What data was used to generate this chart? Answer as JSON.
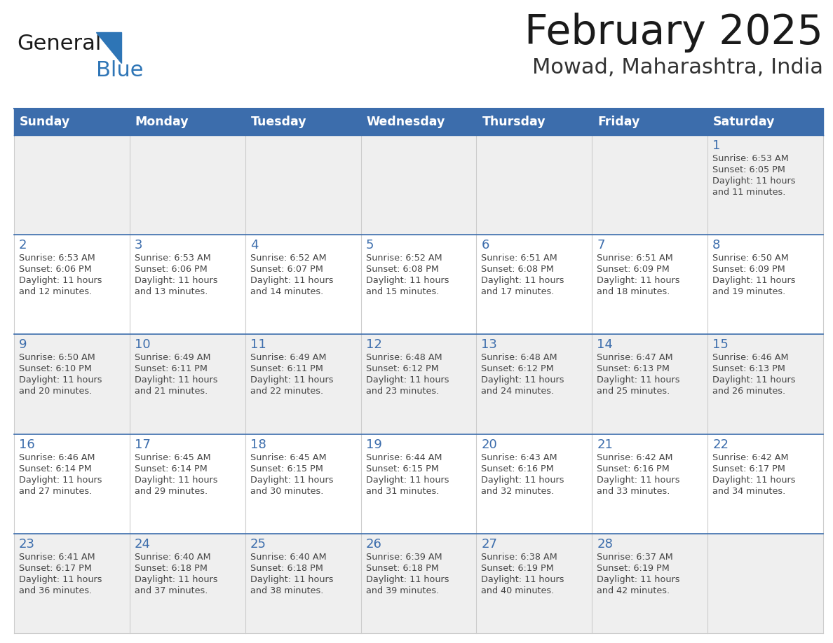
{
  "title": "February 2025",
  "subtitle": "Mowad, Maharashtra, India",
  "days_of_week": [
    "Sunday",
    "Monday",
    "Tuesday",
    "Wednesday",
    "Thursday",
    "Friday",
    "Saturday"
  ],
  "header_bg": "#3C6DAC",
  "header_text_color": "#FFFFFF",
  "cell_bg_even": "#EFEFEF",
  "cell_bg_odd": "#FFFFFF",
  "cell_text_color": "#444444",
  "day_number_color": "#3C6DAC",
  "row_separator_color": "#3C6DAC",
  "grid_color": "#CCCCCC",
  "title_color": "#1a1a1a",
  "subtitle_color": "#333333",
  "logo_general_color": "#1a1a1a",
  "logo_blue_color": "#2E75B6",
  "calendar_data": [
    {
      "day": 1,
      "col": 6,
      "row": 0,
      "sunrise": "6:53 AM",
      "sunset": "6:05 PM",
      "daylight_line1": "Daylight: 11 hours",
      "daylight_line2": "and 11 minutes."
    },
    {
      "day": 2,
      "col": 0,
      "row": 1,
      "sunrise": "6:53 AM",
      "sunset": "6:06 PM",
      "daylight_line1": "Daylight: 11 hours",
      "daylight_line2": "and 12 minutes."
    },
    {
      "day": 3,
      "col": 1,
      "row": 1,
      "sunrise": "6:53 AM",
      "sunset": "6:06 PM",
      "daylight_line1": "Daylight: 11 hours",
      "daylight_line2": "and 13 minutes."
    },
    {
      "day": 4,
      "col": 2,
      "row": 1,
      "sunrise": "6:52 AM",
      "sunset": "6:07 PM",
      "daylight_line1": "Daylight: 11 hours",
      "daylight_line2": "and 14 minutes."
    },
    {
      "day": 5,
      "col": 3,
      "row": 1,
      "sunrise": "6:52 AM",
      "sunset": "6:08 PM",
      "daylight_line1": "Daylight: 11 hours",
      "daylight_line2": "and 15 minutes."
    },
    {
      "day": 6,
      "col": 4,
      "row": 1,
      "sunrise": "6:51 AM",
      "sunset": "6:08 PM",
      "daylight_line1": "Daylight: 11 hours",
      "daylight_line2": "and 17 minutes."
    },
    {
      "day": 7,
      "col": 5,
      "row": 1,
      "sunrise": "6:51 AM",
      "sunset": "6:09 PM",
      "daylight_line1": "Daylight: 11 hours",
      "daylight_line2": "and 18 minutes."
    },
    {
      "day": 8,
      "col": 6,
      "row": 1,
      "sunrise": "6:50 AM",
      "sunset": "6:09 PM",
      "daylight_line1": "Daylight: 11 hours",
      "daylight_line2": "and 19 minutes."
    },
    {
      "day": 9,
      "col": 0,
      "row": 2,
      "sunrise": "6:50 AM",
      "sunset": "6:10 PM",
      "daylight_line1": "Daylight: 11 hours",
      "daylight_line2": "and 20 minutes."
    },
    {
      "day": 10,
      "col": 1,
      "row": 2,
      "sunrise": "6:49 AM",
      "sunset": "6:11 PM",
      "daylight_line1": "Daylight: 11 hours",
      "daylight_line2": "and 21 minutes."
    },
    {
      "day": 11,
      "col": 2,
      "row": 2,
      "sunrise": "6:49 AM",
      "sunset": "6:11 PM",
      "daylight_line1": "Daylight: 11 hours",
      "daylight_line2": "and 22 minutes."
    },
    {
      "day": 12,
      "col": 3,
      "row": 2,
      "sunrise": "6:48 AM",
      "sunset": "6:12 PM",
      "daylight_line1": "Daylight: 11 hours",
      "daylight_line2": "and 23 minutes."
    },
    {
      "day": 13,
      "col": 4,
      "row": 2,
      "sunrise": "6:48 AM",
      "sunset": "6:12 PM",
      "daylight_line1": "Daylight: 11 hours",
      "daylight_line2": "and 24 minutes."
    },
    {
      "day": 14,
      "col": 5,
      "row": 2,
      "sunrise": "6:47 AM",
      "sunset": "6:13 PM",
      "daylight_line1": "Daylight: 11 hours",
      "daylight_line2": "and 25 minutes."
    },
    {
      "day": 15,
      "col": 6,
      "row": 2,
      "sunrise": "6:46 AM",
      "sunset": "6:13 PM",
      "daylight_line1": "Daylight: 11 hours",
      "daylight_line2": "and 26 minutes."
    },
    {
      "day": 16,
      "col": 0,
      "row": 3,
      "sunrise": "6:46 AM",
      "sunset": "6:14 PM",
      "daylight_line1": "Daylight: 11 hours",
      "daylight_line2": "and 27 minutes."
    },
    {
      "day": 17,
      "col": 1,
      "row": 3,
      "sunrise": "6:45 AM",
      "sunset": "6:14 PM",
      "daylight_line1": "Daylight: 11 hours",
      "daylight_line2": "and 29 minutes."
    },
    {
      "day": 18,
      "col": 2,
      "row": 3,
      "sunrise": "6:45 AM",
      "sunset": "6:15 PM",
      "daylight_line1": "Daylight: 11 hours",
      "daylight_line2": "and 30 minutes."
    },
    {
      "day": 19,
      "col": 3,
      "row": 3,
      "sunrise": "6:44 AM",
      "sunset": "6:15 PM",
      "daylight_line1": "Daylight: 11 hours",
      "daylight_line2": "and 31 minutes."
    },
    {
      "day": 20,
      "col": 4,
      "row": 3,
      "sunrise": "6:43 AM",
      "sunset": "6:16 PM",
      "daylight_line1": "Daylight: 11 hours",
      "daylight_line2": "and 32 minutes."
    },
    {
      "day": 21,
      "col": 5,
      "row": 3,
      "sunrise": "6:42 AM",
      "sunset": "6:16 PM",
      "daylight_line1": "Daylight: 11 hours",
      "daylight_line2": "and 33 minutes."
    },
    {
      "day": 22,
      "col": 6,
      "row": 3,
      "sunrise": "6:42 AM",
      "sunset": "6:17 PM",
      "daylight_line1": "Daylight: 11 hours",
      "daylight_line2": "and 34 minutes."
    },
    {
      "day": 23,
      "col": 0,
      "row": 4,
      "sunrise": "6:41 AM",
      "sunset": "6:17 PM",
      "daylight_line1": "Daylight: 11 hours",
      "daylight_line2": "and 36 minutes."
    },
    {
      "day": 24,
      "col": 1,
      "row": 4,
      "sunrise": "6:40 AM",
      "sunset": "6:18 PM",
      "daylight_line1": "Daylight: 11 hours",
      "daylight_line2": "and 37 minutes."
    },
    {
      "day": 25,
      "col": 2,
      "row": 4,
      "sunrise": "6:40 AM",
      "sunset": "6:18 PM",
      "daylight_line1": "Daylight: 11 hours",
      "daylight_line2": "and 38 minutes."
    },
    {
      "day": 26,
      "col": 3,
      "row": 4,
      "sunrise": "6:39 AM",
      "sunset": "6:18 PM",
      "daylight_line1": "Daylight: 11 hours",
      "daylight_line2": "and 39 minutes."
    },
    {
      "day": 27,
      "col": 4,
      "row": 4,
      "sunrise": "6:38 AM",
      "sunset": "6:19 PM",
      "daylight_line1": "Daylight: 11 hours",
      "daylight_line2": "and 40 minutes."
    },
    {
      "day": 28,
      "col": 5,
      "row": 4,
      "sunrise": "6:37 AM",
      "sunset": "6:19 PM",
      "daylight_line1": "Daylight: 11 hours",
      "daylight_line2": "and 42 minutes."
    }
  ],
  "n_rows": 5,
  "n_cols": 7,
  "figsize": [
    11.88,
    9.18
  ],
  "dpi": 100
}
